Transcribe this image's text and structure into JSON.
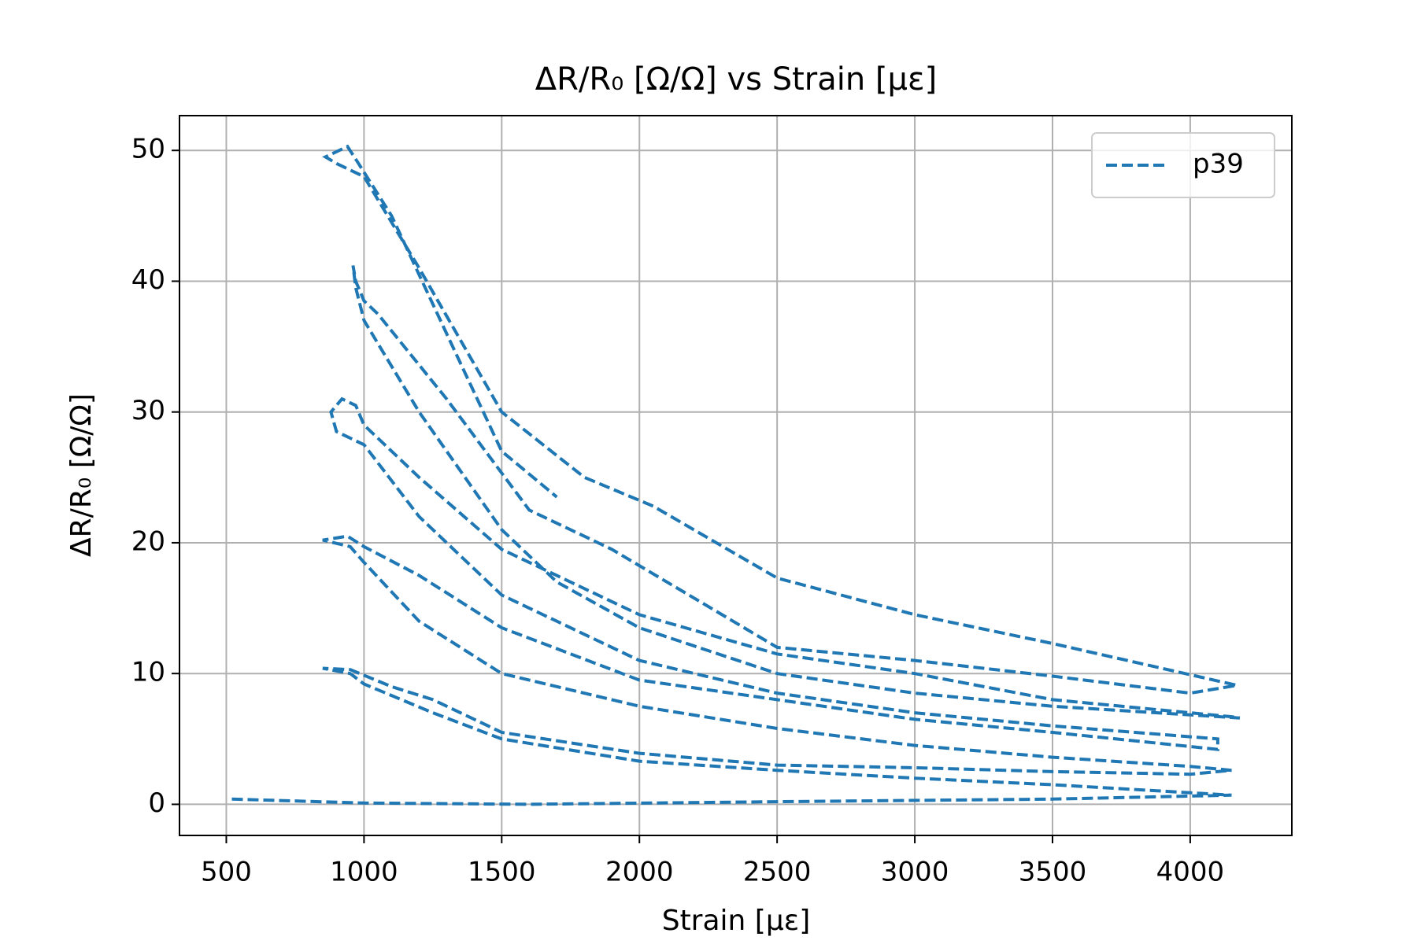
{
  "chart_data": {
    "type": "line",
    "title": "ΔR/R₀ [Ω/Ω] vs Strain [με]",
    "xlabel": "Strain [με]",
    "ylabel": "ΔR/R₀ [Ω/Ω]",
    "x": [
      520,
      1000,
      1600,
      2500,
      3500,
      4150,
      3500,
      3000,
      2500,
      2000,
      1500,
      1250,
      1000,
      950,
      850,
      950,
      1100,
      1250,
      1500,
      2000,
      2500,
      3000,
      3500,
      4000,
      4150,
      4000,
      3500,
      3000,
      2500,
      2000,
      1500,
      1200,
      1000,
      950,
      850,
      940,
      1000,
      1200,
      1500,
      2000,
      2500,
      3000,
      3500,
      4100,
      4100,
      3500,
      3000,
      2500,
      2000,
      1500,
      1200,
      1000,
      900,
      880,
      920,
      970,
      1000,
      1200,
      1500,
      2000,
      2500,
      3000,
      3500,
      4150,
      4180,
      3500,
      3000,
      2500,
      2000,
      1700,
      1500,
      1200,
      1000,
      970,
      960,
      970,
      1000,
      1050,
      1300,
      1600,
      1900,
      2500,
      3000,
      3500,
      4000,
      4170,
      3500,
      3000,
      2500,
      2050,
      1800,
      1500,
      1200,
      1000,
      900,
      860,
      940,
      980,
      1100,
      1300,
      1500,
      1700
    ],
    "series": [
      {
        "name": "p39",
        "color": "#1f77b4",
        "values": [
          0.4,
          0.1,
          0,
          0.2,
          0.4,
          0.7,
          1.5,
          2.0,
          2.6,
          3.3,
          5.0,
          7.0,
          9.2,
          10.0,
          10.4,
          10.3,
          9.0,
          8.0,
          5.5,
          3.9,
          3.0,
          2.8,
          2.5,
          2.3,
          2.6,
          2.9,
          3.6,
          4.5,
          5.8,
          7.5,
          10.0,
          14,
          18.5,
          19.7,
          20.2,
          20.5,
          19.7,
          17.5,
          13.5,
          9.5,
          8.0,
          6.5,
          5.5,
          4.2,
          5.0,
          6.0,
          7.0,
          8.5,
          11,
          16,
          22,
          27.5,
          28.5,
          30,
          31,
          30.5,
          29,
          25,
          19.5,
          14.5,
          11.5,
          10,
          8,
          6.7,
          6.6,
          7.5,
          8.5,
          10,
          13.5,
          17,
          21,
          30,
          37,
          39.5,
          41.2,
          40,
          38.5,
          37.5,
          31,
          22.5,
          19.5,
          12,
          11,
          9.8,
          8.5,
          9.1,
          12.3,
          14.5,
          17.3,
          22.8,
          25,
          30,
          41,
          48,
          49,
          49.5,
          50.3,
          49,
          45,
          36,
          27,
          23.5
        ]
      }
    ],
    "xlim": [
      330,
      4369
    ],
    "ylim": [
      -2.38,
      52.66
    ],
    "xticks": [
      500,
      1000,
      1500,
      2000,
      2500,
      3000,
      3500,
      4000
    ],
    "yticks": [
      0,
      10,
      20,
      30,
      40,
      50
    ],
    "grid": true,
    "legend": "upper right"
  }
}
